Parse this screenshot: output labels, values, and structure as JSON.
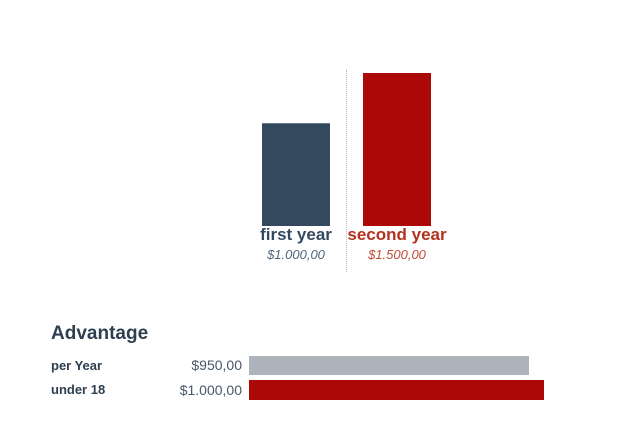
{
  "colors": {
    "first_year_bar": "#34495e",
    "second_year_bar": "#ad0808",
    "advantage_gray_bar": "#aeb4bb",
    "advantage_red_bar": "#ad0808",
    "heading_text": "#2e3f50",
    "first_year_label": "#34495e",
    "second_year_label": "#b5301d",
    "divider": "#bcbcbc"
  },
  "chart_data": [
    {
      "type": "bar",
      "orientation": "vertical",
      "title": "",
      "categories": [
        "first year",
        "second year"
      ],
      "values": [
        1000,
        1500
      ],
      "value_labels": [
        "$1.000,00",
        "$1.500,00"
      ],
      "colors": [
        "#34495e",
        "#ad0808"
      ],
      "ylim": [
        0,
        1500
      ],
      "grid": false,
      "notes": "dotted vertical divider between the two bars; category label and italic value label under each bar"
    },
    {
      "type": "bar",
      "orientation": "horizontal",
      "title": "Advantage",
      "categories": [
        "per Year",
        "under 18"
      ],
      "values": [
        950,
        1000
      ],
      "value_labels": [
        "$950,00",
        "$1.000,00"
      ],
      "colors": [
        "#aeb4bb",
        "#ad0808"
      ],
      "xlim": [
        0,
        1000
      ],
      "grid": false,
      "notes": "label left, value right-aligned before bar start"
    }
  ]
}
